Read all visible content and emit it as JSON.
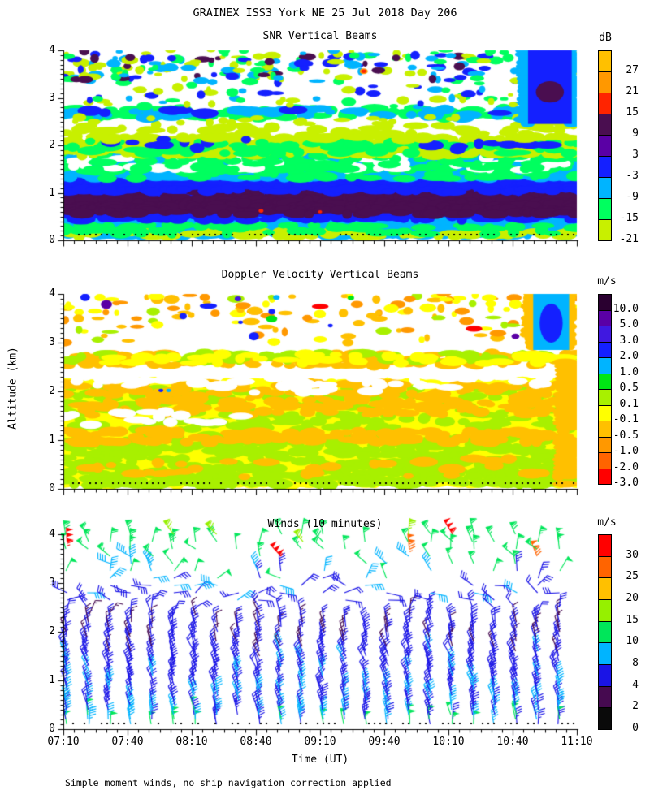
{
  "title": "GRAINEX ISS3 York NE  25 Jul 2018 Day 206",
  "caption": "Simple moment winds, no ship navigation correction applied",
  "chart_data": {
    "type": [
      "heatmap",
      "heatmap",
      "barbs"
    ],
    "x": {
      "label": "Time (UT)",
      "ticks": [
        "07:10",
        "07:40",
        "08:10",
        "08:40",
        "09:10",
        "09:40",
        "10:10",
        "10:40",
        "11:10"
      ],
      "major_step_min": 30,
      "minor_step_min": 5,
      "span_min": 240
    },
    "y": {
      "label": "Altitude (km)",
      "ticks": [
        "0",
        "1",
        "2",
        "3",
        "4"
      ],
      "range": [
        0,
        4
      ],
      "minor_step": 0.1
    },
    "snr": {
      "title": "SNR Vertical Beams",
      "units": "dB",
      "scale": [
        {
          "color": "#FFC000",
          "label": "27"
        },
        {
          "color": "#FF9800",
          "label": "21"
        },
        {
          "color": "#FF2400",
          "label": "15"
        },
        {
          "color": "#4A0E50",
          "label": "9"
        },
        {
          "color": "#5A00A5",
          "label": "3"
        },
        {
          "color": "#1420FF",
          "label": "-3"
        },
        {
          "color": "#00B4FF",
          "label": "-9"
        },
        {
          "color": "#00FF5F",
          "label": "-15"
        },
        {
          "color": "#C8F000",
          "label": "-21"
        }
      ],
      "bands": [
        {
          "a0": 0.05,
          "a1": 0.52,
          "color": "#00B4FF",
          "density": 1.0
        },
        {
          "a0": 0.05,
          "a1": 0.18,
          "color": "#C8F000",
          "density": 0.55
        },
        {
          "a0": 0.1,
          "a1": 0.3,
          "color": "#00FF5F",
          "density": 0.4
        },
        {
          "a0": 0.44,
          "a1": 1.08,
          "color": "#1420FF",
          "density": 1.0
        },
        {
          "a0": 0.52,
          "a1": 0.98,
          "color": "#4A0E50",
          "density": 0.92
        },
        {
          "a0": 1.02,
          "a1": 1.32,
          "color": "#1420FF",
          "density": 1.0
        },
        {
          "a0": 1.3,
          "a1": 1.82,
          "color": "#00B4FF",
          "density": 1.0
        },
        {
          "a0": 1.32,
          "a1": 1.6,
          "color": "#00FF5F",
          "density": 0.25
        },
        {
          "a0": 1.45,
          "a1": 1.72,
          "color": "#FFFFFF",
          "density": 0.22
        },
        {
          "a0": 1.52,
          "a1": 1.8,
          "color": "#00FF5F",
          "density": 0.3
        },
        {
          "a0": 1.78,
          "a1": 2.16,
          "color": "#C8F000",
          "density": 0.95
        },
        {
          "a0": 1.82,
          "a1": 2.06,
          "color": "#00FF5F",
          "density": 0.35
        },
        {
          "a0": 1.9,
          "a1": 2.1,
          "color": "#1420FF",
          "density": 0.3,
          "x0": 0.07,
          "x1": 0.42
        },
        {
          "a0": 1.92,
          "a1": 2.08,
          "color": "#1420FF",
          "density": 0.25,
          "x0": 0.72,
          "x1": 0.95
        },
        {
          "a0": 2.14,
          "a1": 2.42,
          "color": "#C8F000",
          "density": 0.25
        },
        {
          "a0": 2.56,
          "a1": 2.76,
          "color": "#00FF5F",
          "density": 0.55
        },
        {
          "a0": 2.6,
          "a1": 2.74,
          "color": "#00B4FF",
          "density": 0.3
        },
        {
          "a0": 2.62,
          "a1": 2.72,
          "color": "#1420FF",
          "density": 0.12
        }
      ],
      "speckles": [
        {
          "a0": 2.8,
          "a1": 4.0,
          "count": 150,
          "colors": [
            "#C8F000",
            "#C8F000",
            "#00FF5F",
            "#00B4FF",
            "#1420FF"
          ]
        },
        {
          "a0": 3.35,
          "a1": 4.0,
          "count": 130,
          "colors": [
            "#C8F000",
            "#00FF5F",
            "#00B4FF",
            "#1420FF",
            "#4A0E50"
          ]
        },
        {
          "a0": 2.45,
          "a1": 2.6,
          "count": 25,
          "colors": [
            "#C8F000"
          ]
        }
      ],
      "right_column": {
        "x0": 0.905,
        "x1": 0.99,
        "a0": 2.45,
        "a1": 4.0,
        "color": "#1420FF",
        "edge": "#00B4FF",
        "inner": {
          "a0": 2.9,
          "a1": 3.35,
          "color": "#4A0E50"
        }
      },
      "marks": [
        {
          "x": 0.585,
          "a": 3.56,
          "color": "#FF9800",
          "r": 5
        },
        {
          "x": 0.585,
          "a": 3.56,
          "color": "#FF2400",
          "r": 3
        },
        {
          "x": 0.385,
          "a": 0.62,
          "color": "#FF2400",
          "r": 3
        },
        {
          "x": 0.5,
          "a": 0.6,
          "color": "#FF2400",
          "r": 2.5
        }
      ]
    },
    "doppler": {
      "title": "Doppler Velocity Vertical Beams",
      "units": "m/s",
      "scale": [
        {
          "color": "#2A0030",
          "label": "10.0"
        },
        {
          "color": "#5A00A5",
          "label": "5.0"
        },
        {
          "color": "#4018E0",
          "label": "3.0"
        },
        {
          "color": "#1420FF",
          "label": "2.0"
        },
        {
          "color": "#00B4FF",
          "label": "1.0"
        },
        {
          "color": "#00E614",
          "label": "0.5"
        },
        {
          "color": "#A8F000",
          "label": "0.1"
        },
        {
          "color": "#FFFF00",
          "label": "-0.1"
        },
        {
          "color": "#FFC000",
          "label": "-0.5"
        },
        {
          "color": "#FF9800",
          "label": "-1.0"
        },
        {
          "color": "#FF6400",
          "label": "-2.0"
        },
        {
          "color": "#FF0000",
          "label": "-3.0"
        }
      ],
      "bands": [
        {
          "a0": 0.05,
          "a1": 2.18,
          "color": "#FFFF00",
          "density": 1.0
        },
        {
          "a0": 0.05,
          "a1": 0.3,
          "color": "#A8F000",
          "density": 0.5
        },
        {
          "a0": 0.08,
          "a1": 1.05,
          "color": "#A8F000",
          "density": 0.45
        },
        {
          "a0": 1.25,
          "a1": 2.05,
          "color": "#A8F000",
          "density": 0.28
        },
        {
          "a0": 0.95,
          "a1": 1.18,
          "color": "#FFC000",
          "density": 0.5
        },
        {
          "a0": 1.55,
          "a1": 2.15,
          "color": "#FFC000",
          "density": 0.35
        },
        {
          "a0": 0.25,
          "a1": 0.6,
          "color": "#FFC000",
          "density": 0.12
        },
        {
          "a0": 1.3,
          "a1": 1.55,
          "color": "#FFFFFF",
          "density": 0.2,
          "x0": 0.0,
          "x1": 0.35
        },
        {
          "a0": 1.95,
          "a1": 2.18,
          "color": "#FFFFFF",
          "density": 0.15,
          "x0": 0.35,
          "x1": 0.75
        },
        {
          "a0": 2.1,
          "a1": 2.34,
          "color": "#FFFFFF",
          "density": 0.3
        },
        {
          "a0": 2.56,
          "a1": 2.76,
          "color": "#FFC000",
          "density": 0.55
        },
        {
          "a0": 2.58,
          "a1": 2.78,
          "color": "#A8F000",
          "density": 0.25
        },
        {
          "a0": 2.6,
          "a1": 2.74,
          "color": "#FFFF00",
          "density": 0.3
        }
      ],
      "speckles": [
        {
          "a0": 3.0,
          "a1": 4.0,
          "count": 90,
          "colors": [
            "#FFC000",
            "#FFC000",
            "#FFFF00",
            "#FF9800",
            "#A8F000"
          ]
        },
        {
          "a0": 3.55,
          "a1": 4.0,
          "count": 45,
          "colors": [
            "#FFC000",
            "#FFFF00",
            "#FF9800"
          ]
        },
        {
          "a0": 3.0,
          "a1": 4.0,
          "count": 14,
          "colors": [
            "#00B4FF",
            "#1420FF",
            "#00E614",
            "#FF0000",
            "#5A00A5"
          ]
        }
      ],
      "right_column": {
        "x0": 0.915,
        "x1": 0.985,
        "a0": 2.85,
        "a1": 4.0,
        "color": "#00B4FF",
        "edge": "#FFC000",
        "inner": {
          "a0": 3.0,
          "a1": 3.8,
          "color": "#1420FF"
        }
      },
      "right_strip": {
        "x0": 0.96,
        "x1": 1.0,
        "a0": 0.05,
        "a1": 2.6,
        "color": "#FFC000"
      },
      "marks": [
        {
          "x": 0.34,
          "a": 3.9,
          "color": "#4018E0",
          "r": 4
        },
        {
          "x": 0.415,
          "a": 3.93,
          "color": "#00B4FF",
          "r": 4
        },
        {
          "x": 0.56,
          "a": 3.92,
          "color": "#00E614",
          "r": 4
        },
        {
          "x": 0.52,
          "a": 3.35,
          "color": "#1420FF",
          "r": 3
        },
        {
          "x": 0.345,
          "a": 3.42,
          "color": "#1420FF",
          "r": 3
        },
        {
          "x": 0.19,
          "a": 2.02,
          "color": "#1420FF",
          "r": 3
        },
        {
          "x": 0.205,
          "a": 2.02,
          "color": "#00B4FF",
          "r": 3
        }
      ]
    },
    "winds": {
      "title": "Winds (10 minutes)",
      "units": "m/s",
      "scale": [
        {
          "color": "#FF0000",
          "label": "30"
        },
        {
          "color": "#FF6400",
          "label": "25"
        },
        {
          "color": "#FFC000",
          "label": "20"
        },
        {
          "color": "#96F000",
          "label": "15"
        },
        {
          "color": "#00E65A",
          "label": "10"
        },
        {
          "color": "#00B4FF",
          "label": "8"
        },
        {
          "color": "#1A14E6",
          "label": "4"
        },
        {
          "color": "#460A50",
          "label": "2"
        },
        {
          "color": "#0A0A0A",
          "label": "0"
        }
      ],
      "speed_colors": [
        {
          "min": 0,
          "c": "#0A0A0A"
        },
        {
          "min": 2,
          "c": "#460A50"
        },
        {
          "min": 4,
          "c": "#1A14E6"
        },
        {
          "min": 8,
          "c": "#00B4FF"
        },
        {
          "min": 10,
          "c": "#00E65A"
        },
        {
          "min": 15,
          "c": "#96F000"
        },
        {
          "min": 20,
          "c": "#FFC000"
        },
        {
          "min": 25,
          "c": "#FF6400"
        },
        {
          "min": 30,
          "c": "#FF0000"
        }
      ],
      "time_step_min": 10,
      "n_columns": 24,
      "levels_low": {
        "a0": 0.1,
        "a1": 2.2,
        "step": 0.1
      },
      "levels_high": {
        "a0": 2.35,
        "a1": 4.0,
        "step": 0.15
      },
      "speed_profile": [
        {
          "alt": 0.1,
          "spd": 9.0
        },
        {
          "alt": 0.4,
          "spd": 8.0
        },
        {
          "alt": 0.8,
          "spd": 7.0
        },
        {
          "alt": 1.2,
          "spd": 6.5
        },
        {
          "alt": 1.6,
          "spd": 6.0
        },
        {
          "alt": 2.0,
          "spd": 4.5
        },
        {
          "alt": 2.4,
          "spd": 5.0
        },
        {
          "alt": 2.8,
          "spd": 6.5
        },
        {
          "alt": 3.2,
          "spd": 9.0
        },
        {
          "alt": 3.6,
          "spd": 12.0
        },
        {
          "alt": 4.0,
          "spd": 14.0
        }
      ],
      "angle_profile": [
        {
          "alt": 0.1,
          "ang": -6
        },
        {
          "alt": 0.5,
          "ang": -14
        },
        {
          "alt": 1.0,
          "ang": -18
        },
        {
          "alt": 1.5,
          "ang": -22
        },
        {
          "alt": 2.0,
          "ang": -14
        },
        {
          "alt": 2.3,
          "ang": -8
        },
        {
          "alt": 2.6,
          "ang": 60
        },
        {
          "alt": 3.0,
          "ang": 80
        },
        {
          "alt": 3.4,
          "ang": -40
        },
        {
          "alt": 3.7,
          "ang": -25
        },
        {
          "alt": 4.0,
          "ang": -15
        }
      ],
      "jitter": {
        "spd": 2.2,
        "ang_low": 10,
        "ang_high": 35
      },
      "dropout": {
        "low": 0.04,
        "mid": 0.42,
        "high": 0.55,
        "top": 0.33
      },
      "strong_top_prob": 0.09,
      "strong_spd": 30
    }
  }
}
